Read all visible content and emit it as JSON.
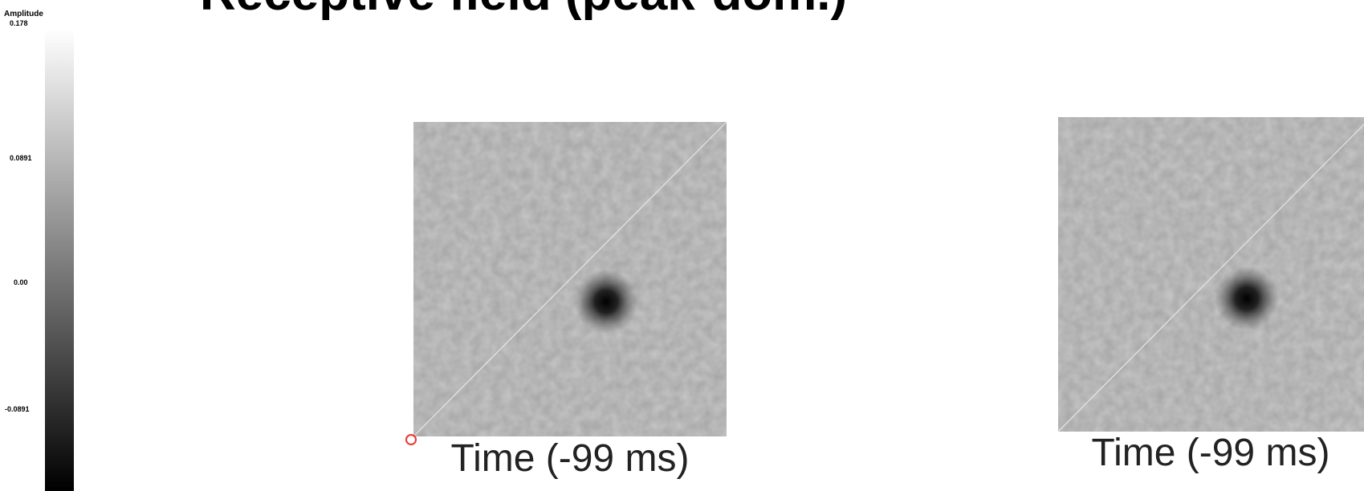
{
  "title": "Receptive field (peak-dom.)",
  "colorbar": {
    "title": "Amplitude",
    "ticks": [
      "0.178",
      "0.0891",
      "0.00",
      "-0.0891"
    ]
  },
  "panels": [
    {
      "label": "Time (-99 ms)"
    },
    {
      "label": "Time (-99 ms)"
    }
  ]
}
